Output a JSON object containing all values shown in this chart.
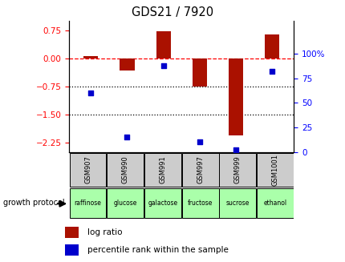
{
  "title": "GDS21 / 7920",
  "samples": [
    "GSM907",
    "GSM990",
    "GSM991",
    "GSM997",
    "GSM999",
    "GSM1001"
  ],
  "growth_protocols": [
    "raffinose",
    "glucose",
    "galactose",
    "fructose",
    "sucrose",
    "ethanol"
  ],
  "log_ratios": [
    0.07,
    -0.32,
    0.72,
    -0.75,
    -2.05,
    0.65
  ],
  "percentile_ranks": [
    60,
    15,
    88,
    10,
    2,
    82
  ],
  "bar_color": "#aa1100",
  "dot_color": "#0000cc",
  "left_ylim": [
    -2.5,
    1.0
  ],
  "right_ylim": [
    0,
    133.33
  ],
  "left_yticks": [
    -2.25,
    -1.5,
    -0.75,
    0,
    0.75
  ],
  "right_yticks": [
    0,
    25,
    50,
    75,
    100
  ],
  "right_yticklabels": [
    "0",
    "25",
    "50",
    "75",
    "100%"
  ],
  "hline_y": 0,
  "dotted_lines": [
    -0.75,
    -1.5
  ],
  "bar_width": 0.4,
  "sample_bg_color": "#cccccc",
  "proto_bg_color": "#aaffaa",
  "legend_log_ratio_color": "#aa1100",
  "legend_percentile_color": "#0000cc",
  "legend_log_ratio_label": "log ratio",
  "legend_percentile_label": "percentile rank within the sample",
  "growth_protocol_text": "growth protocol"
}
